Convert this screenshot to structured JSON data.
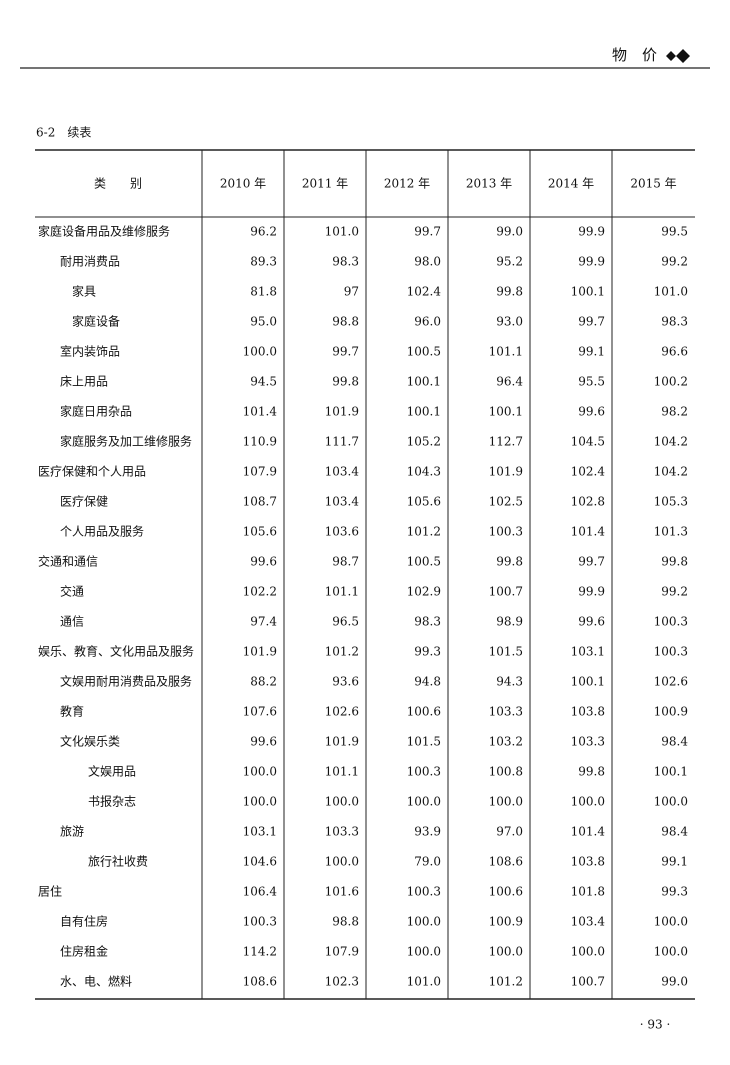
{
  "header": {
    "section": "物　价"
  },
  "table": {
    "caption": "6-2　续表",
    "columns": [
      "类　　别",
      "2010 年",
      "2011 年",
      "2012 年",
      "2013 年",
      "2014 年",
      "2015 年"
    ],
    "rows": [
      [
        "家庭设备用品及维修服务",
        "96.2",
        "101.0",
        "99.7",
        "99.0",
        "99.9",
        "99.5"
      ],
      [
        "耐用消费品",
        "89.3",
        "98.3",
        "98.0",
        "95.2",
        "99.9",
        "99.2"
      ],
      [
        "家具",
        "81.8",
        "97",
        "102.4",
        "99.8",
        "100.1",
        "101.0"
      ],
      [
        "家庭设备",
        "95.0",
        "98.8",
        "96.0",
        "93.0",
        "99.7",
        "98.3"
      ],
      [
        "室内装饰品",
        "100.0",
        "99.7",
        "100.5",
        "101.1",
        "99.1",
        "96.6"
      ],
      [
        "床上用品",
        "94.5",
        "99.8",
        "100.1",
        "96.4",
        "95.5",
        "100.2"
      ],
      [
        "家庭日用杂品",
        "101.4",
        "101.9",
        "100.1",
        "100.1",
        "99.6",
        "98.2"
      ],
      [
        "家庭服务及加工维修服务",
        "110.9",
        "111.7",
        "105.2",
        "112.7",
        "104.5",
        "104.2"
      ],
      [
        "医疗保健和个人用品",
        "107.9",
        "103.4",
        "104.3",
        "101.9",
        "102.4",
        "104.2"
      ],
      [
        "医疗保健",
        "108.7",
        "103.4",
        "105.6",
        "102.5",
        "102.8",
        "105.3"
      ],
      [
        "个人用品及服务",
        "105.6",
        "103.6",
        "101.2",
        "100.3",
        "101.4",
        "101.3"
      ],
      [
        "交通和通信",
        "99.6",
        "98.7",
        "100.5",
        "99.8",
        "99.7",
        "99.8"
      ],
      [
        "交通",
        "102.2",
        "101.1",
        "102.9",
        "100.7",
        "99.9",
        "99.2"
      ],
      [
        "通信",
        "97.4",
        "96.5",
        "98.3",
        "98.9",
        "99.6",
        "100.3"
      ],
      [
        "娱乐、教育、文化用品及服务",
        "101.9",
        "101.2",
        "99.3",
        "101.5",
        "103.1",
        "100.3"
      ],
      [
        "文娱用耐用消费品及服务",
        "88.2",
        "93.6",
        "94.8",
        "94.3",
        "100.1",
        "102.6"
      ],
      [
        "教育",
        "107.6",
        "102.6",
        "100.6",
        "103.3",
        "103.8",
        "100.9"
      ],
      [
        "文化娱乐类",
        "99.6",
        "101.9",
        "101.5",
        "103.2",
        "103.3",
        "98.4"
      ],
      [
        "文娱用品",
        "100.0",
        "101.1",
        "100.3",
        "100.8",
        "99.8",
        "100.1"
      ],
      [
        "书报杂志",
        "100.0",
        "100.0",
        "100.0",
        "100.0",
        "100.0",
        "100.0"
      ],
      [
        "旅游",
        "103.1",
        "103.3",
        "93.9",
        "97.0",
        "101.4",
        "98.4"
      ],
      [
        "旅行社收费",
        "104.6",
        "100.0",
        "79.0",
        "108.6",
        "103.8",
        "99.1"
      ],
      [
        "居住",
        "106.4",
        "101.6",
        "100.3",
        "100.6",
        "101.8",
        "99.3"
      ],
      [
        "自有住房",
        "100.3",
        "98.8",
        "100.0",
        "100.9",
        "103.4",
        "100.0"
      ],
      [
        "住房租金",
        "114.2",
        "107.9",
        "100.0",
        "100.0",
        "100.0",
        "100.0"
      ],
      [
        "水、电、燃料",
        "108.6",
        "102.3",
        "101.0",
        "101.2",
        "100.7",
        "99.0"
      ]
    ]
  },
  "page_number": "· 93 ·"
}
